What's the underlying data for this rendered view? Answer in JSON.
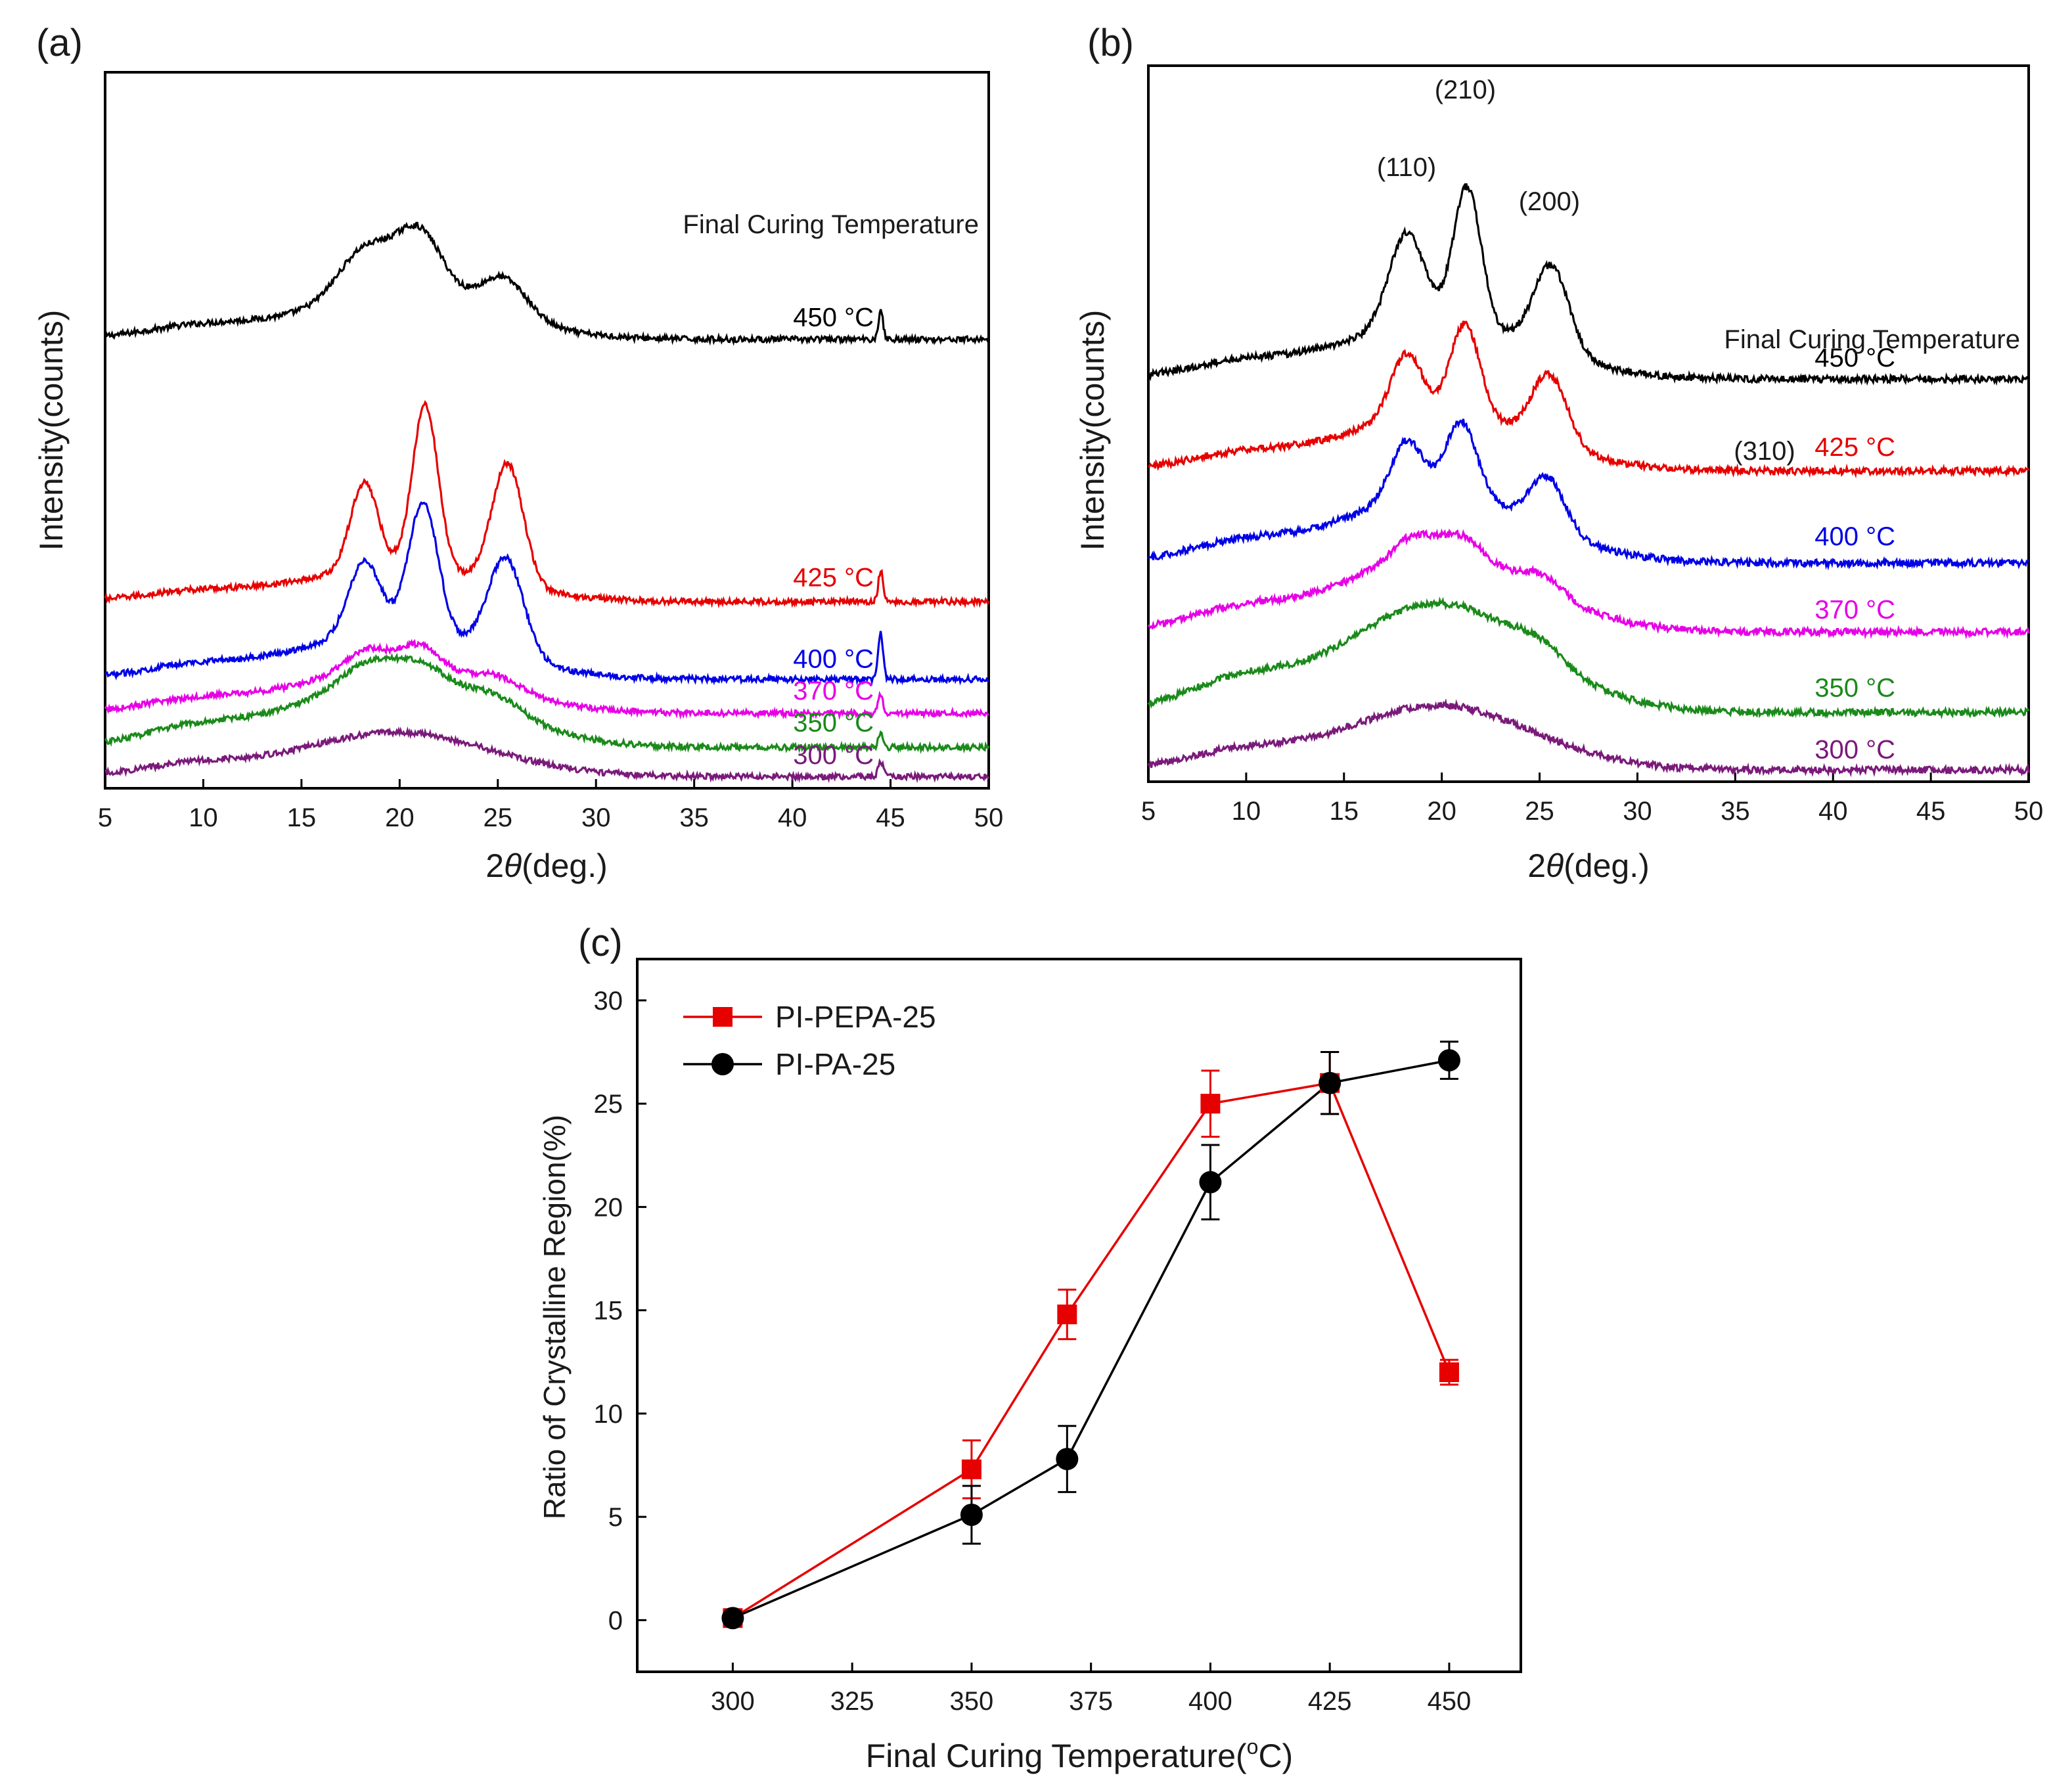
{
  "figure": {
    "panels": [
      "(a)",
      "(b)",
      "(c)"
    ]
  },
  "chart_data": [
    {
      "panel": "(a)",
      "type": "line",
      "xlabel": "2θ(deg.)",
      "xlabel_main": "2",
      "xlabel_theta": "θ",
      "xlabel_rest": "(deg.)",
      "ylabel": "Intensity(counts)",
      "xlim": [
        5,
        50
      ],
      "xticks": [
        5,
        10,
        15,
        20,
        25,
        30,
        35,
        40,
        45,
        50
      ],
      "y_ticks_shown": false,
      "legend_title": "Final Curing Temperature",
      "series": [
        {
          "name": "450 °C",
          "color": "#000000",
          "offset": 4.5,
          "amp": 0.9,
          "amorph": 0.5,
          "sharp": 0.25,
          "peaks": [
            [
              18.2,
              0.55,
              1.3
            ],
            [
              21.0,
              0.75,
              1.2
            ],
            [
              25.3,
              0.45,
              1.2
            ]
          ],
          "sharp44": 0.08
        },
        {
          "name": "425 °C",
          "color": "#e60000",
          "offset": 1.8,
          "amp": 1.0,
          "amorph": 0.35,
          "sharp": 0.9,
          "peaks": [
            [
              18.2,
              0.9,
              0.7
            ],
            [
              21.3,
              1.7,
              0.65
            ],
            [
              25.5,
              1.25,
              0.8
            ]
          ],
          "sharp44": 0.08
        },
        {
          "name": "400 °C",
          "color": "#0000e6",
          "offset": 1.0,
          "amp": 1.0,
          "amorph": 0.5,
          "sharp": 0.7,
          "peaks": [
            [
              18.2,
              0.75,
              0.8
            ],
            [
              21.2,
              1.35,
              0.75
            ],
            [
              25.4,
              1.0,
              0.9
            ]
          ],
          "sharp44": 0.12
        },
        {
          "name": "370 °C",
          "color": "#e600e6",
          "offset": 0.65,
          "amp": 0.8,
          "amorph": 0.6,
          "sharp": 0.15,
          "peaks": [
            [
              18.3,
              0.25,
              1.0
            ],
            [
              21.0,
              0.3,
              1.0
            ],
            [
              25.0,
              0.15,
              1.2
            ]
          ],
          "sharp44": 0.06
        },
        {
          "name": "350 °C",
          "color": "#1a8a1a",
          "offset": 0.3,
          "amp": 0.9,
          "amorph": 0.8,
          "sharp": 0.12,
          "peaks": [
            [
              18.3,
              0.2,
              1.2
            ],
            [
              21.0,
              0.2,
              1.2
            ],
            [
              25.0,
              0.15,
              1.3
            ]
          ],
          "sharp44": 0.04
        },
        {
          "name": "300 °C",
          "color": "#7a1a7a",
          "offset": 0.0,
          "amp": 0.65,
          "amorph": 0.7,
          "sharp": 0.0,
          "peaks": [],
          "sharp44": 0.06
        }
      ]
    },
    {
      "panel": "(b)",
      "type": "line",
      "xlabel": "2θ(deg.)",
      "xlabel_main": "2",
      "xlabel_theta": "θ",
      "xlabel_rest": "(deg.)",
      "ylabel": "Intensity(counts)",
      "xlim": [
        5,
        50
      ],
      "xticks": [
        5,
        10,
        15,
        20,
        25,
        30,
        35,
        40,
        45,
        50
      ],
      "y_ticks_shown": false,
      "legend_title": "Final Curing Temperature",
      "peak_labels": [
        {
          "text": "(110)",
          "x": 18.2
        },
        {
          "text": "(210)",
          "x": 21.2
        },
        {
          "text": "(200)",
          "x": 25.5
        },
        {
          "text": "(310)",
          "x": 36.5
        }
      ],
      "series": [
        {
          "name": "450 °C",
          "color": "#000000",
          "offset": 3.4,
          "amp": 1.0,
          "amorph": 0.5,
          "sharp": 0.7,
          "peaks": [
            [
              18.2,
              0.8,
              0.9
            ],
            [
              21.3,
              1.2,
              0.7
            ],
            [
              25.6,
              0.75,
              0.9
            ]
          ],
          "sharp44": 0.0
        },
        {
          "name": "425 °C",
          "color": "#e60000",
          "offset": 2.6,
          "amp": 1.0,
          "amorph": 0.5,
          "sharp": 0.5,
          "peaks": [
            [
              18.2,
              0.55,
              0.8
            ],
            [
              21.2,
              0.8,
              0.75
            ],
            [
              25.5,
              0.6,
              0.9
            ]
          ],
          "sharp44": 0.0
        },
        {
          "name": "400 °C",
          "color": "#0000e6",
          "offset": 1.8,
          "amp": 1.0,
          "amorph": 0.6,
          "sharp": 0.45,
          "peaks": [
            [
              18.2,
              0.5,
              0.8
            ],
            [
              21.0,
              0.65,
              0.8
            ],
            [
              25.4,
              0.45,
              0.9
            ]
          ],
          "sharp44": 0.0
        },
        {
          "name": "370 °C",
          "color": "#e600e6",
          "offset": 1.2,
          "amp": 0.9,
          "amorph": 0.75,
          "sharp": 0.15,
          "peaks": [
            [
              18.5,
              0.2,
              1.0
            ],
            [
              21.0,
              0.2,
              1.0
            ],
            [
              25.2,
              0.15,
              1.0
            ]
          ],
          "sharp44": 0.0
        },
        {
          "name": "350 °C",
          "color": "#1a8a1a",
          "offset": 0.5,
          "amp": 1.0,
          "amorph": 0.95,
          "sharp": 0.1,
          "peaks": [
            [
              25.0,
              0.12,
              1.2
            ]
          ],
          "sharp44": 0.0
        },
        {
          "name": "300 °C",
          "color": "#7a1a7a",
          "offset": 0.0,
          "amp": 0.75,
          "amorph": 0.75,
          "sharp": 0.0,
          "peaks": [],
          "sharp44": 0.0
        }
      ]
    },
    {
      "panel": "(c)",
      "type": "line",
      "xlabel": "Final Curing Temperature(°C)",
      "xlabel_main": "Final Curing Temperature(",
      "xlabel_deg": "o",
      "xlabel_rest": "C)",
      "ylabel": "Ratio of Crystalline Region(%)",
      "xlim": [
        280,
        465
      ],
      "ylim": [
        -2.5,
        32
      ],
      "xticks": [
        300,
        325,
        350,
        375,
        400,
        425,
        450
      ],
      "yticks": [
        0,
        5,
        10,
        15,
        20,
        25,
        30
      ],
      "legend_placement": "top-left",
      "series": [
        {
          "name": "PI-PEPA-25",
          "color": "#e60000",
          "marker": "square",
          "x": [
            300,
            350,
            370,
            400,
            425,
            450
          ],
          "y": [
            0.1,
            7.3,
            14.8,
            25.0,
            26.0,
            12.0
          ],
          "err": [
            0.3,
            1.4,
            1.2,
            1.6,
            1.5,
            0.6
          ]
        },
        {
          "name": "PI-PA-25",
          "color": "#000000",
          "marker": "circle",
          "x": [
            300,
            350,
            370,
            400,
            425,
            450
          ],
          "y": [
            0.1,
            5.1,
            7.8,
            21.2,
            26.0,
            27.1
          ],
          "err": [
            0.3,
            1.4,
            1.6,
            1.8,
            1.5,
            0.9
          ]
        }
      ]
    }
  ]
}
